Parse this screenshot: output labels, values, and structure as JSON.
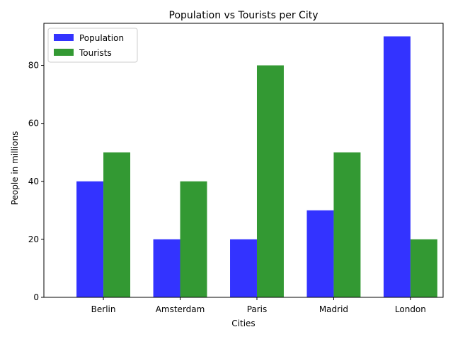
{
  "chart_data": {
    "type": "bar",
    "title": "Population vs Tourists per City",
    "xlabel": "Cities",
    "ylabel": "People in millions",
    "categories": [
      "Berlin",
      "Amsterdam",
      "Paris",
      "Madrid",
      "London"
    ],
    "series": [
      {
        "name": "Population",
        "values": [
          40,
          20,
          20,
          30,
          90
        ],
        "color": "#3333ff"
      },
      {
        "name": "Tourists",
        "values": [
          50,
          40,
          80,
          50,
          20
        ],
        "color": "#339933"
      }
    ],
    "ylim": [
      0,
      94.5
    ],
    "yticks": [
      0,
      20,
      40,
      60,
      80
    ],
    "grid": false,
    "legend_position": "top-left"
  }
}
